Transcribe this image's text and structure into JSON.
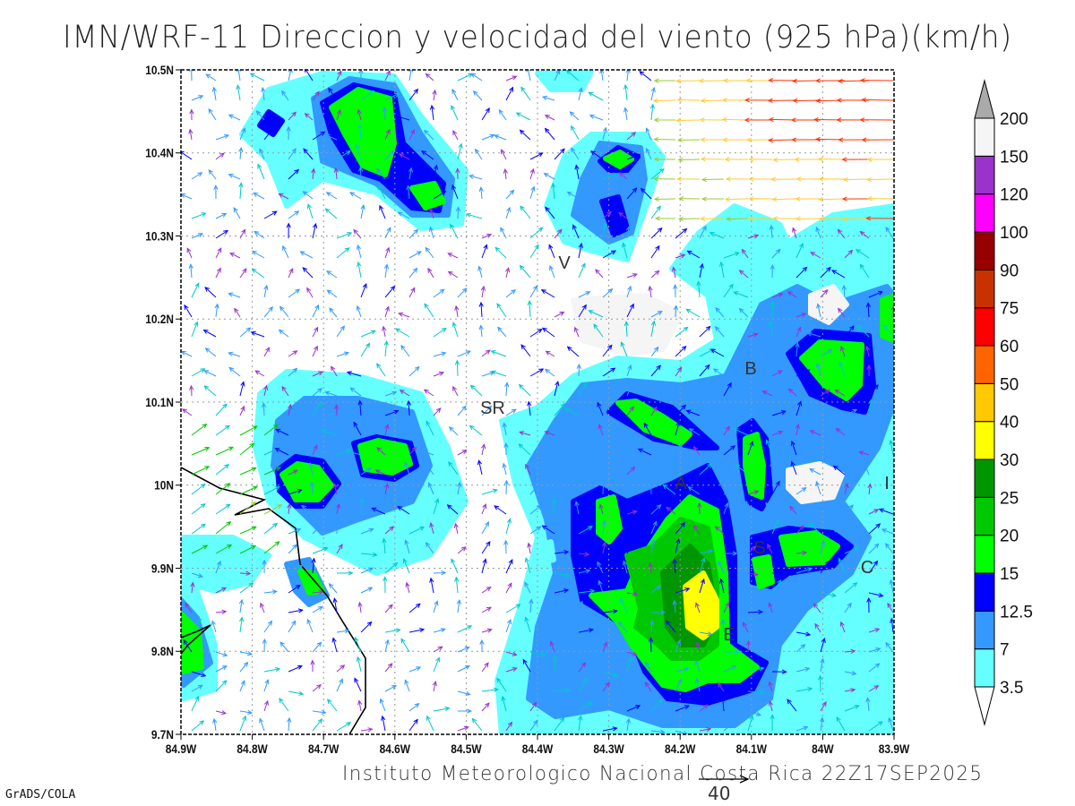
{
  "title": "IMN/WRF-11 Direccion y velocidad del viento (925 hPa)(km/h)",
  "footer": "Instituto Meteorologico Nacional Costa Rica 22Z17SEP2025",
  "credit": "GrADS/COLA",
  "reference_vector": "40",
  "map": {
    "lon_ticks": [
      "84.9W",
      "84.8W",
      "84.7W",
      "84.6W",
      "84.5W",
      "84.4W",
      "84.3W",
      "84.2W",
      "84.1W",
      "84W",
      "83.9W"
    ],
    "lat_ticks": [
      "10.5N",
      "10.4N",
      "10.3N",
      "10.2N",
      "10.1N",
      "10N",
      "9.9N",
      "9.8N",
      "9.7N"
    ],
    "place_labels": [
      "V",
      "SR",
      "B",
      "A",
      "I",
      "S",
      "C",
      "E"
    ]
  },
  "colorbar": {
    "levels": [
      "3.5",
      "7",
      "12.5",
      "15",
      "20",
      "25",
      "30",
      "40",
      "50",
      "60",
      "75",
      "90",
      "100",
      "120",
      "150",
      "200"
    ],
    "colors": [
      "#66ffff",
      "#3399ff",
      "#0000ff",
      "#00ff00",
      "#00c800",
      "#009600",
      "#ffff00",
      "#ffc800",
      "#ff6400",
      "#ff0000",
      "#c83200",
      "#960000",
      "#ff00ff",
      "#9933cc",
      "#f5f5f5"
    ],
    "over_color": "#aaaaaa",
    "under_color": "#ffffff"
  }
}
